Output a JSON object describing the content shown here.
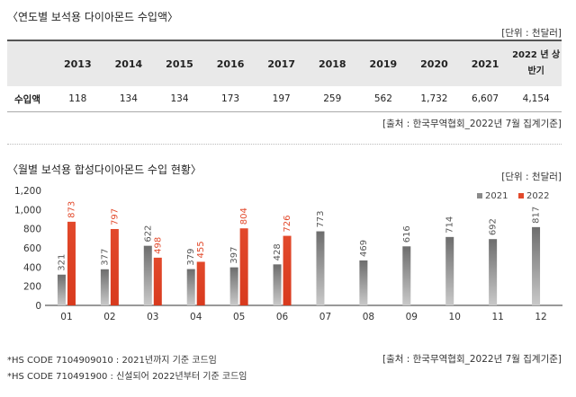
{
  "table_section": {
    "title": "〈연도별 보석용 다이아몬드 수입액〉",
    "unit": "[단위 : 천달러]",
    "row_label": "수입액",
    "headers": [
      "2013",
      "2014",
      "2015",
      "2016",
      "2017",
      "2018",
      "2019",
      "2020",
      "2021",
      "2022 년 상반기"
    ],
    "values": [
      "118",
      "134",
      "134",
      "173",
      "197",
      "259",
      "562",
      "1,732",
      "6,607",
      "4,154"
    ],
    "source": "[출처 : 한국무역협회_2022년 7월 집계기준]"
  },
  "chart_section": {
    "title": "〈월별 보석용 합성다이아몬드 수입 현황〉",
    "unit": "[단위 : 천달러]",
    "source": "[출처 : 한국무역협회_2022년 7월 집계기준]",
    "notes": [
      "*HS CODE 7104909010 : 2021년까지 기준 코드임",
      "*HS CODE 710491900 : 신설되어 2022년부터 기준 코드임"
    ]
  },
  "chart_data": {
    "type": "bar",
    "categories": [
      "01",
      "02",
      "03",
      "04",
      "05",
      "06",
      "07",
      "08",
      "09",
      "10",
      "11",
      "12"
    ],
    "series": [
      {
        "name": "2021",
        "values": [
          321,
          377,
          622,
          379,
          397,
          428,
          773,
          469,
          616,
          714,
          692,
          817
        ],
        "color": "#8a8a8a"
      },
      {
        "name": "2022",
        "values": [
          873,
          797,
          498,
          455,
          804,
          726,
          null,
          null,
          null,
          null,
          null,
          null
        ],
        "color": "#e2492b"
      }
    ],
    "ylim": [
      0,
      1200
    ],
    "yticks": [
      "0",
      "200",
      "400",
      "600",
      "800",
      "1,000",
      "1,200"
    ],
    "legend": "top-right",
    "grid": false
  }
}
